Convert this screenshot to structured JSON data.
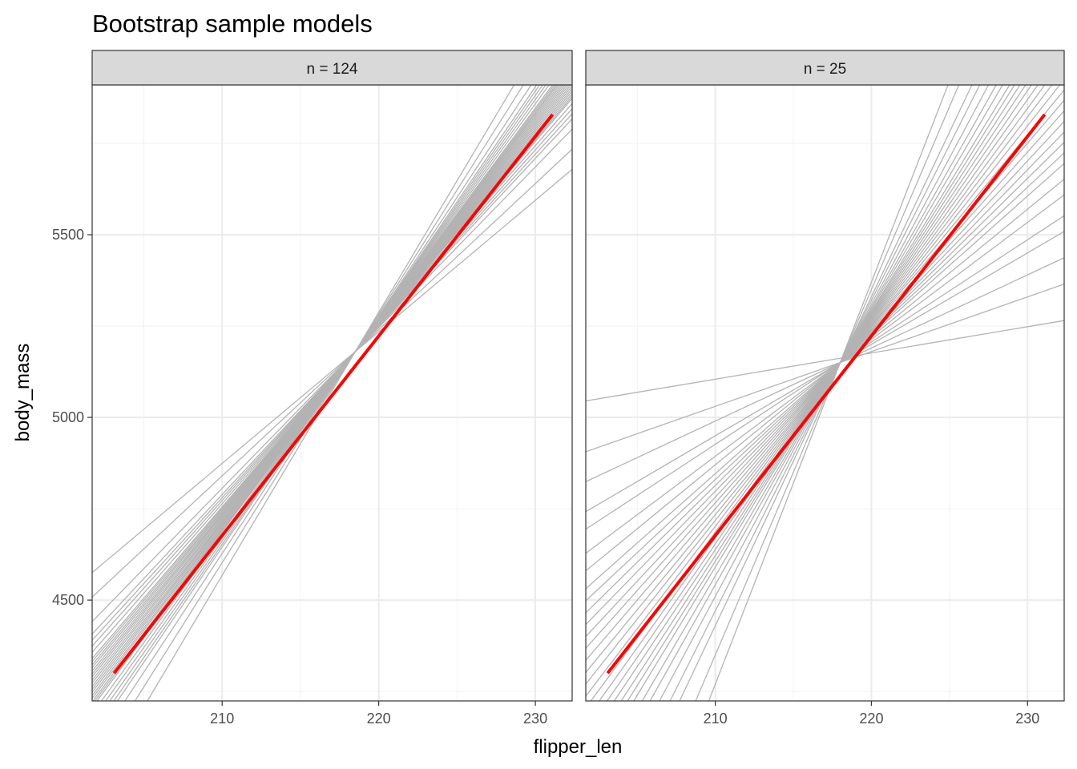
{
  "chart_data": {
    "type": "line",
    "title": "Bootstrap sample models",
    "xlabel": "flipper_len",
    "ylabel": "body_mass",
    "xlim": [
      201.7,
      232.35
    ],
    "ylim": [
      4224,
      5910
    ],
    "x_ticks": [
      210,
      220,
      230
    ],
    "y_ticks": [
      4500,
      5000,
      5500
    ],
    "grid": true,
    "bootstrap_line_color": "#b3b3b3",
    "fit_line_color": "#ff0000",
    "panels": [
      {
        "strip": "n = 124",
        "fit_line": {
          "x": [
            203.1,
            231.1
          ],
          "y": [
            4300,
            5829
          ]
        },
        "bootstrap_lines_x": [
          201.7,
          232.35
        ],
        "bootstrap_lines_y": [
          [
            4575,
            5679
          ],
          [
            4508,
            5734
          ],
          [
            4441,
            5789
          ],
          [
            4407,
            5817
          ],
          [
            4390,
            5831
          ],
          [
            4374,
            5845
          ],
          [
            4357,
            5859
          ],
          [
            4340,
            5873
          ],
          [
            4332,
            5879
          ],
          [
            4323,
            5886
          ],
          [
            4315,
            5893
          ],
          [
            4306,
            5900
          ],
          [
            4298,
            5907
          ],
          [
            4290,
            5914
          ],
          [
            4281,
            5921
          ],
          [
            4273,
            5928
          ],
          [
            4264,
            5935
          ],
          [
            4256,
            5942
          ],
          [
            4248,
            5949
          ],
          [
            4239,
            5956
          ],
          [
            4231,
            5963
          ],
          [
            4222,
            5969
          ],
          [
            4214,
            5976
          ],
          [
            4206,
            5983
          ],
          [
            4189,
            5997
          ],
          [
            4172,
            6011
          ],
          [
            4155,
            6025
          ],
          [
            4138,
            6039
          ],
          [
            4122,
            6053
          ],
          [
            4088,
            6080
          ],
          [
            4038,
            6122
          ],
          [
            3970,
            6177
          ]
        ]
      },
      {
        "strip": "n = 25",
        "fit_line": {
          "x": [
            203.1,
            231.1
          ],
          "y": [
            4300,
            5829
          ]
        },
        "bootstrap_lines_x": [
          201.7,
          232.35
        ],
        "bootstrap_lines_y": [
          [
            5045,
            5265
          ],
          [
            4906,
            5365
          ],
          [
            4824,
            5437
          ],
          [
            4742,
            5509
          ],
          [
            4694,
            5552
          ],
          [
            4628,
            5609
          ],
          [
            4580,
            5652
          ],
          [
            4531,
            5695
          ],
          [
            4498,
            5724
          ],
          [
            4465,
            5753
          ],
          [
            4433,
            5781
          ],
          [
            4400,
            5810
          ],
          [
            4368,
            5839
          ],
          [
            4335,
            5868
          ],
          [
            4302,
            5896
          ],
          [
            4270,
            5925
          ],
          [
            4237,
            5954
          ],
          [
            4205,
            5982
          ],
          [
            4172,
            6011
          ],
          [
            4139,
            6040
          ],
          [
            4107,
            6068
          ],
          [
            4074,
            6097
          ],
          [
            4042,
            6126
          ],
          [
            4009,
            6155
          ],
          [
            3960,
            6198
          ],
          [
            3911,
            6241
          ],
          [
            3846,
            6298
          ],
          [
            3765,
            6370
          ],
          [
            3683,
            6442
          ],
          [
            3520,
            6585
          ],
          [
            3357,
            6729
          ]
        ]
      }
    ]
  }
}
